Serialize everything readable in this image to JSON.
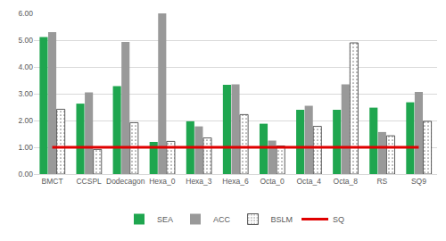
{
  "chart_data": {
    "type": "bar",
    "categories": [
      "BMCT",
      "CCSPL",
      "Dodecagon",
      "Hexa_0",
      "Hexa_3",
      "Hexa_6",
      "Octa_0",
      "Octa_4",
      "Octa_8",
      "RS",
      "SQ9"
    ],
    "series": [
      {
        "name": "SEA",
        "type": "bar",
        "color": "#1fa64f",
        "values": [
          5.12,
          2.63,
          3.28,
          1.2,
          1.97,
          3.33,
          1.88,
          2.4,
          2.4,
          2.48,
          2.68
        ]
      },
      {
        "name": "ACC",
        "type": "bar",
        "color": "#999999",
        "values": [
          5.3,
          3.05,
          4.93,
          6.0,
          1.78,
          3.35,
          1.25,
          2.55,
          3.35,
          1.57,
          3.07
        ]
      },
      {
        "name": "BSLM",
        "type": "bar",
        "color": "#ffffff",
        "values": [
          2.42,
          0.92,
          1.92,
          1.22,
          1.35,
          2.22,
          1.05,
          1.78,
          4.9,
          1.43,
          1.97
        ]
      },
      {
        "name": "SQ",
        "type": "line",
        "color": "#e00000",
        "values": [
          1.0,
          1.0,
          1.0,
          1.0,
          1.0,
          1.0,
          1.0,
          1.0,
          1.0,
          1.0,
          1.0
        ]
      }
    ],
    "ylim": [
      0,
      6
    ],
    "yticks": [
      {
        "value": 0,
        "label": "0.00"
      },
      {
        "value": 1,
        "label": "1.00"
      },
      {
        "value": 2,
        "label": "2.00"
      },
      {
        "value": 3,
        "label": "3.00"
      },
      {
        "value": 4,
        "label": "4.00"
      },
      {
        "value": 5,
        "label": "5.00"
      },
      {
        "value": 6,
        "label": "6.00"
      }
    ],
    "grid": true,
    "legend": "bottom"
  }
}
